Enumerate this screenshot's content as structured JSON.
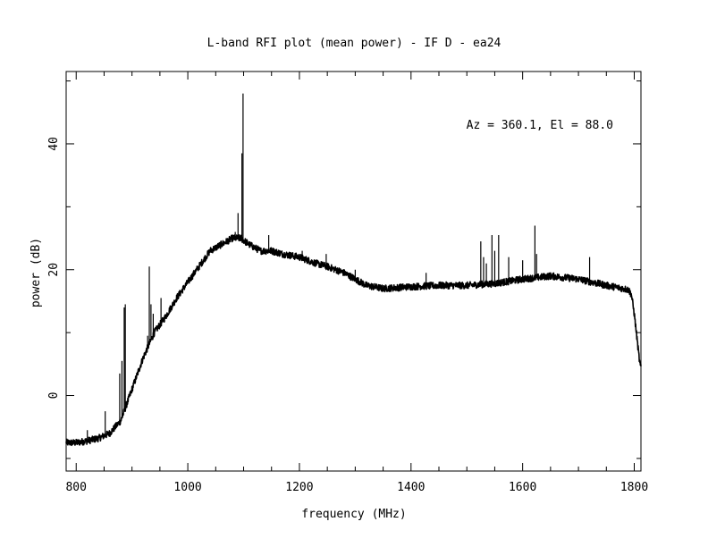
{
  "chart_data": {
    "type": "line",
    "title": "L-band RFI plot (mean power) - IF D - ea24",
    "xlabel": "frequency (MHz)",
    "ylabel": "power (dB)",
    "annotation": "Az = 360.1, El = 88.0",
    "xlim": [
      782,
      1812
    ],
    "ylim": [
      -12,
      51.5
    ],
    "x_ticks": [
      {
        "value": 800,
        "label": "800"
      },
      {
        "value": 1000,
        "label": "1000"
      },
      {
        "value": 1200,
        "label": "1200"
      },
      {
        "value": 1400,
        "label": "1400"
      },
      {
        "value": 1600,
        "label": "1600"
      },
      {
        "value": 1800,
        "label": "1800"
      }
    ],
    "x_minor_step": 50,
    "y_ticks": [
      {
        "value": 0,
        "label": "0"
      },
      {
        "value": 20,
        "label": "20"
      },
      {
        "value": 40,
        "label": "40"
      }
    ],
    "y_minor_step": 10,
    "grid": false,
    "line_color": "#000000",
    "series": [
      {
        "baseline": [
          [
            782,
            -7.5
          ],
          [
            800,
            -7.5
          ],
          [
            820,
            -7.2
          ],
          [
            840,
            -6.8
          ],
          [
            860,
            -6.0
          ],
          [
            870,
            -5.0
          ],
          [
            880,
            -4.0
          ],
          [
            890,
            -1.5
          ],
          [
            900,
            1.0
          ],
          [
            920,
            6.0
          ],
          [
            940,
            10.0
          ],
          [
            960,
            12.5
          ],
          [
            980,
            15.5
          ],
          [
            1000,
            18.0
          ],
          [
            1020,
            20.5
          ],
          [
            1040,
            23.0
          ],
          [
            1060,
            24.0
          ],
          [
            1080,
            25.0
          ],
          [
            1095,
            25.0
          ],
          [
            1110,
            24.0
          ],
          [
            1130,
            23.0
          ],
          [
            1150,
            23.0
          ],
          [
            1170,
            22.5
          ],
          [
            1200,
            22.0
          ],
          [
            1230,
            21.0
          ],
          [
            1250,
            20.5
          ],
          [
            1280,
            19.5
          ],
          [
            1300,
            18.5
          ],
          [
            1320,
            17.5
          ],
          [
            1350,
            17.0
          ],
          [
            1400,
            17.3
          ],
          [
            1450,
            17.5
          ],
          [
            1500,
            17.5
          ],
          [
            1550,
            17.8
          ],
          [
            1600,
            18.5
          ],
          [
            1650,
            19.0
          ],
          [
            1700,
            18.5
          ],
          [
            1750,
            17.5
          ],
          [
            1780,
            17.0
          ],
          [
            1790,
            16.8
          ],
          [
            1795,
            16.0
          ],
          [
            1800,
            13.0
          ],
          [
            1805,
            9.0
          ],
          [
            1810,
            5.0
          ],
          [
            1812,
            4.5
          ]
        ],
        "spikes": [
          [
            820,
            -5.5
          ],
          [
            852,
            -2.5
          ],
          [
            878,
            3.5
          ],
          [
            882,
            5.5
          ],
          [
            886,
            14.0
          ],
          [
            888,
            14.5
          ],
          [
            928,
            9.5
          ],
          [
            931,
            20.5
          ],
          [
            934,
            14.5
          ],
          [
            938,
            13.0
          ],
          [
            952,
            15.5
          ],
          [
            1085,
            26.0
          ],
          [
            1090,
            29.0
          ],
          [
            1097,
            38.5
          ],
          [
            1099,
            48.0
          ],
          [
            1145,
            25.5
          ],
          [
            1205,
            23.0
          ],
          [
            1248,
            22.5
          ],
          [
            1300,
            20.0
          ],
          [
            1427,
            19.5
          ],
          [
            1525,
            24.5
          ],
          [
            1530,
            22.0
          ],
          [
            1535,
            21.0
          ],
          [
            1545,
            25.5
          ],
          [
            1550,
            23.0
          ],
          [
            1557,
            25.5
          ],
          [
            1575,
            22.0
          ],
          [
            1600,
            21.5
          ],
          [
            1622,
            27.0
          ],
          [
            1625,
            22.5
          ],
          [
            1720,
            22.0
          ]
        ]
      }
    ]
  }
}
